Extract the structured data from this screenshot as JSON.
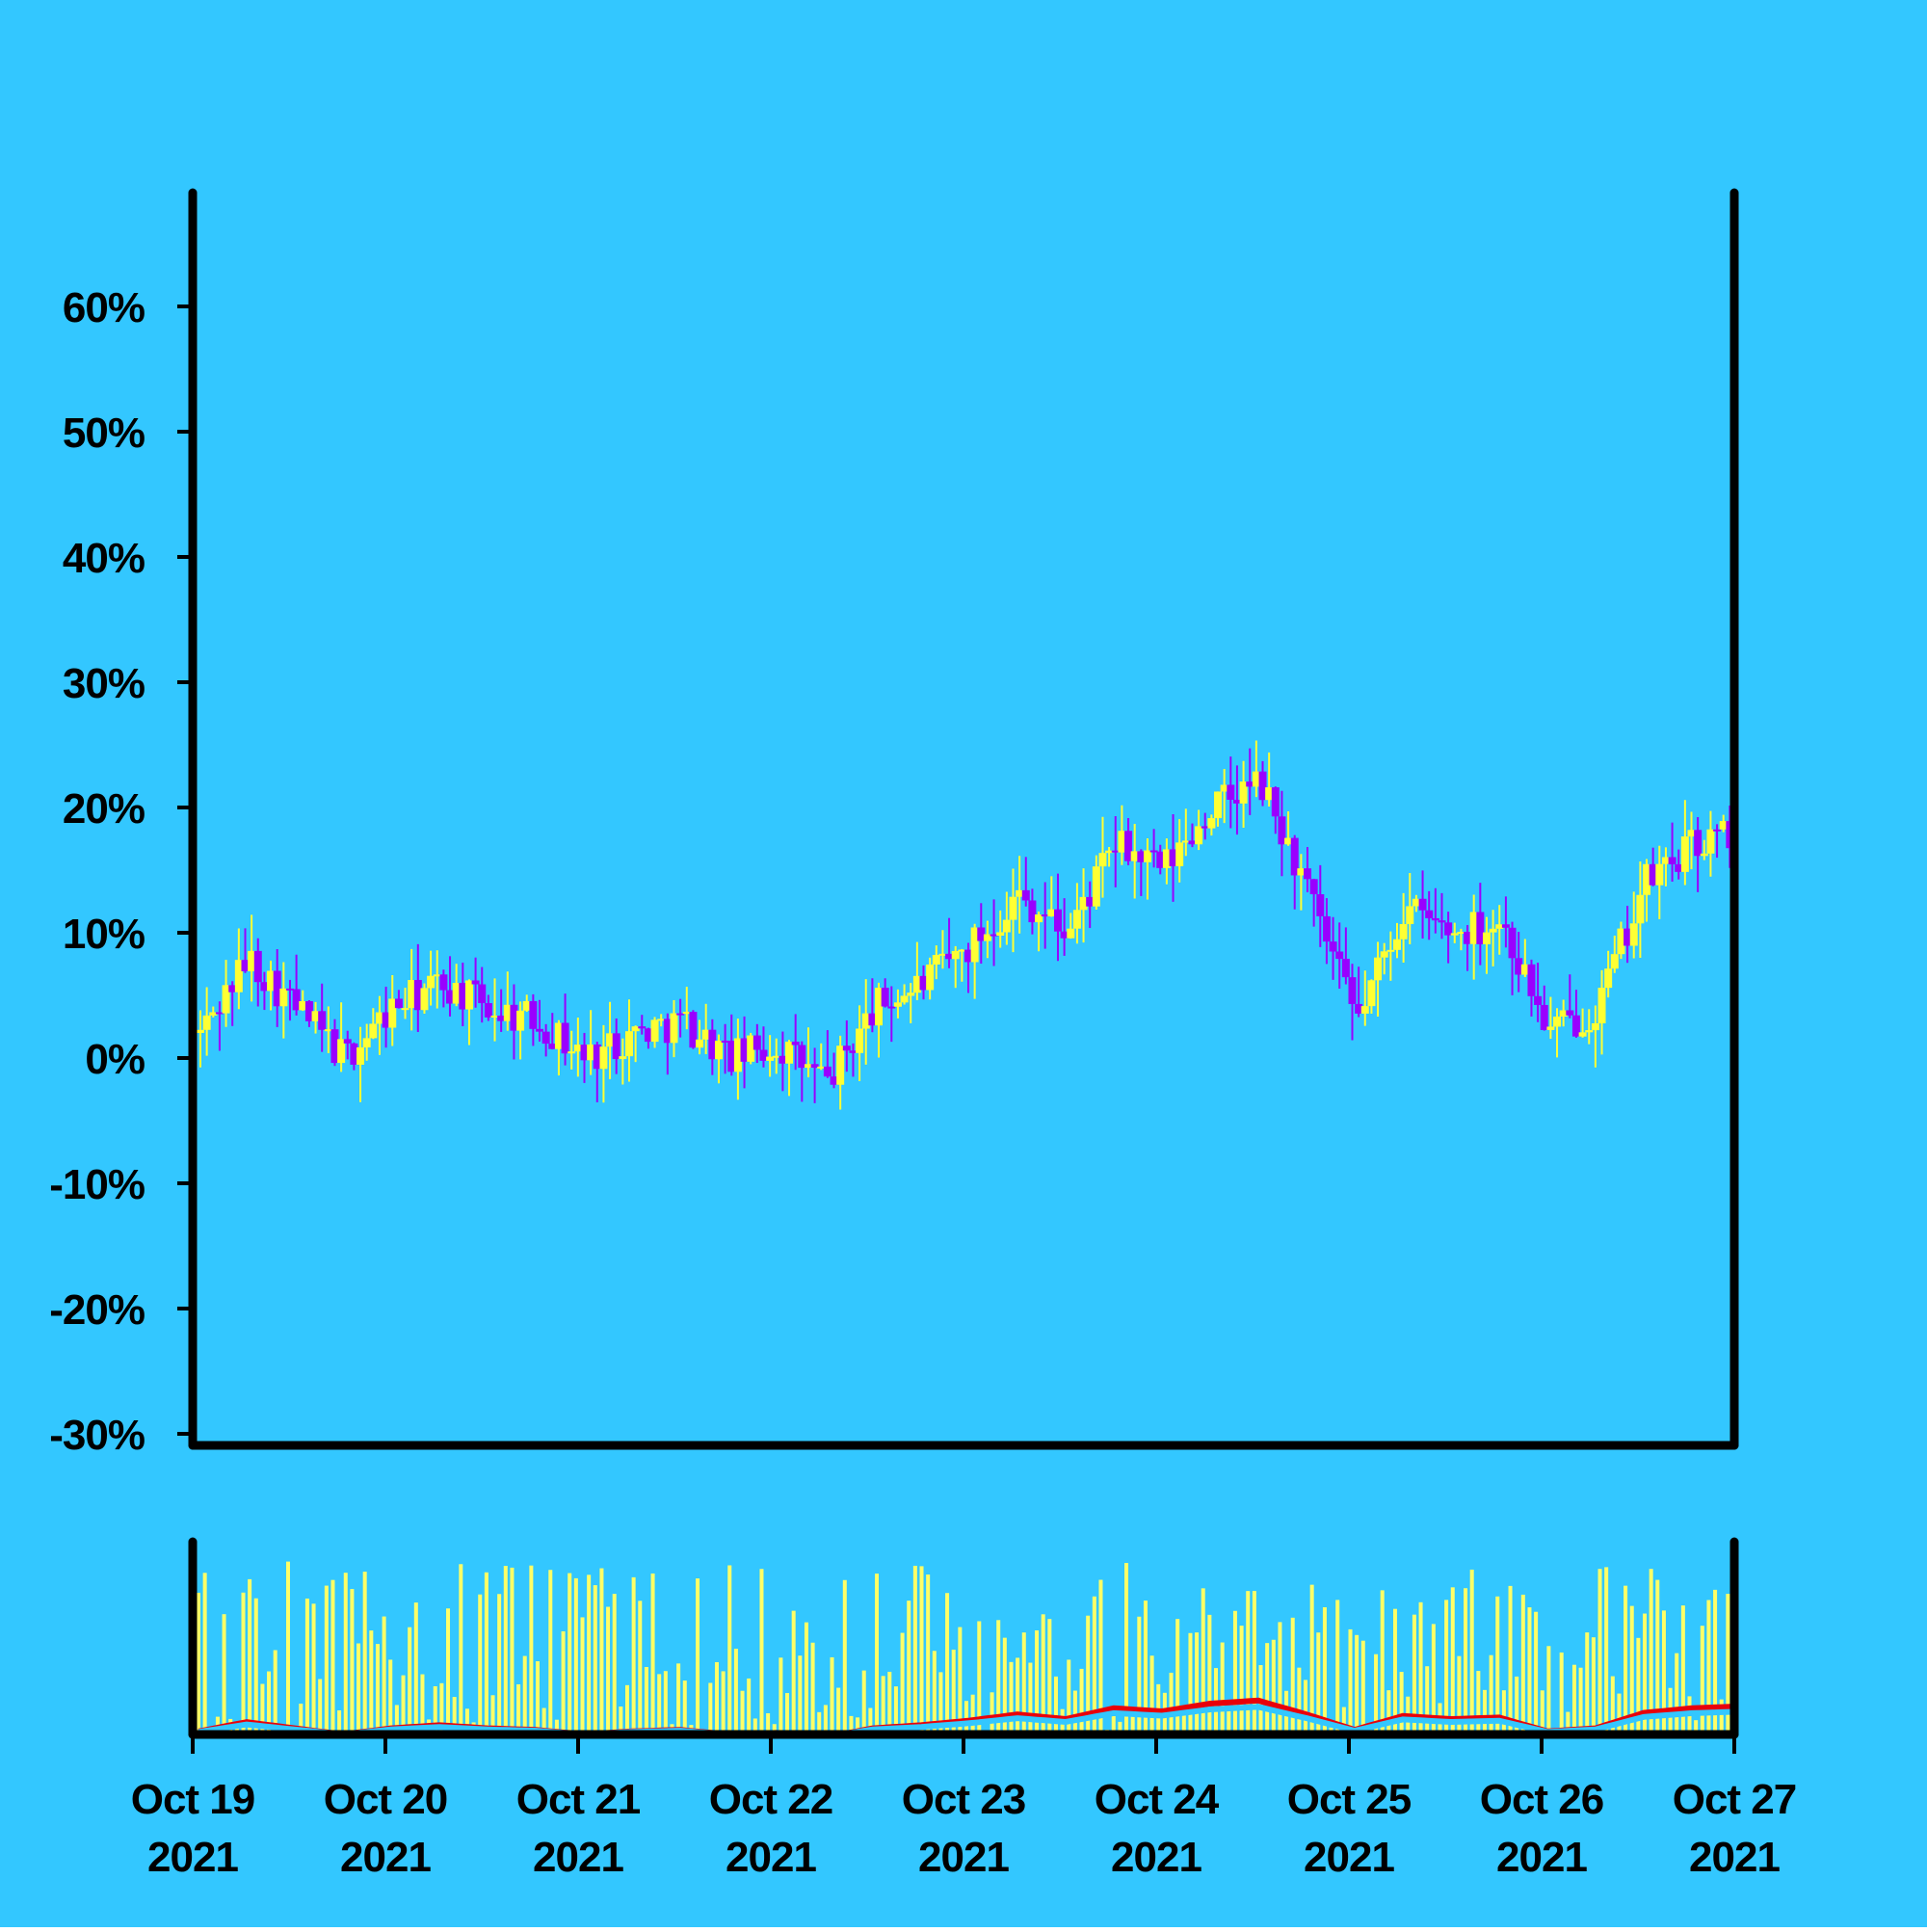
{
  "colors": {
    "background": "#33c7ff",
    "axis": "#000000",
    "up": "#ffff33",
    "down": "#9900ff",
    "volume": "#ffff66",
    "ma_fast": "#e8000b",
    "ma_slow": "#33c7ff"
  },
  "chart_data": {
    "type": "candlestick",
    "title": "",
    "xlabel": "",
    "ylabel": "",
    "x_axis": {
      "start": "2021-10-19",
      "end": "2021-10-27",
      "ticks": [
        {
          "line1": "Oct 19",
          "line2": "2021"
        },
        {
          "line1": "Oct 20",
          "line2": "2021"
        },
        {
          "line1": "Oct 21",
          "line2": "2021"
        },
        {
          "line1": "Oct 22",
          "line2": "2021"
        },
        {
          "line1": "Oct 23",
          "line2": "2021"
        },
        {
          "line1": "Oct 24",
          "line2": "2021"
        },
        {
          "line1": "Oct 25",
          "line2": "2021"
        },
        {
          "line1": "Oct 26",
          "line2": "2021"
        },
        {
          "line1": "Oct 27",
          "line2": "2021"
        }
      ]
    },
    "y_axis": {
      "unit": "%",
      "ylim": [
        -30,
        60
      ],
      "ticks": [
        "60%",
        "50%",
        "40%",
        "30%",
        "20%",
        "10%",
        "0%",
        "-10%",
        "-20%",
        "-30%"
      ]
    },
    "series": [
      {
        "kind": "ohlc",
        "x_days": [
          0.0,
          0.25,
          0.5,
          0.75,
          1.0,
          1.25,
          1.5,
          1.75,
          2.0,
          2.25,
          2.5,
          2.75,
          3.0,
          3.25,
          3.5,
          3.75,
          4.0,
          4.25,
          4.5,
          4.75,
          5.0,
          5.25,
          5.5,
          5.75,
          6.0,
          6.25,
          6.5,
          6.75,
          7.0,
          7.25,
          7.5,
          7.75,
          7.95
        ],
        "close_pct": [
          2,
          8,
          4,
          0,
          4,
          6,
          4,
          3,
          0,
          2,
          3,
          0,
          1,
          -2,
          4,
          6,
          9,
          13,
          10,
          17,
          15,
          20,
          22,
          13,
          3,
          12,
          10,
          11,
          2,
          4,
          14,
          17,
          18
        ],
        "range_pct": 4.5
      },
      {
        "kind": "volume",
        "values": [],
        "note_ma": [
          "fast",
          "slow"
        ]
      }
    ],
    "grid": false,
    "legend": "none"
  }
}
